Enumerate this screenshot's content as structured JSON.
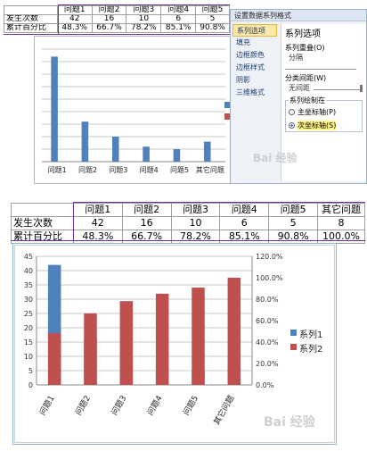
{
  "top_table": {
    "headers": [
      "",
      "问题1",
      "问题2",
      "问题3",
      "问题4",
      "问题5"
    ],
    "rows": [
      {
        "label": "发生次数",
        "values": [
          "42",
          "16",
          "10",
          "6",
          "5"
        ]
      },
      {
        "label": "累计百分比",
        "values": [
          "48.3%",
          "66.7%",
          "78.2%",
          "85.1%",
          "90.8%"
        ]
      }
    ]
  },
  "bottom_table": {
    "headers": [
      "",
      "问题1",
      "问题2",
      "问题3",
      "问题4",
      "问题5",
      "其它问题"
    ],
    "rows": [
      {
        "label": "发生次数",
        "values": [
          "42",
          "16",
          "10",
          "6",
          "5",
          "8"
        ]
      },
      {
        "label": "累计百分比",
        "values": [
          "48.3%",
          "66.7%",
          "78.2%",
          "85.1%",
          "90.8%",
          "100.0%"
        ]
      }
    ]
  },
  "dialog": {
    "title": "设置数据系列格式",
    "nav": [
      "系列选项",
      "填充",
      "边框颜色",
      "边框样式",
      "阴影",
      "三维格式"
    ],
    "panel_title": "系列选项",
    "overlap_label": "系列重叠(O)",
    "overlap_value": "分隔",
    "gap_label": "分类间距(W)",
    "gap_value": "无间距",
    "plot_on_label": "系列绘制在",
    "primary_axis": "主坐标轴(P)",
    "secondary_axis": "次坐标轴(S)"
  },
  "watermark": "Bai 经验",
  "chart_data": [
    {
      "type": "bar",
      "categories": [
        "问题1",
        "问题2",
        "问题3",
        "问题4",
        "问题5",
        "其它问题"
      ],
      "series": [
        {
          "values": [
            42,
            16,
            10,
            6,
            5,
            8
          ],
          "color": "#4f81bd"
        }
      ],
      "ylim": [
        0,
        45
      ],
      "yticks": [
        "0",
        "5",
        "10",
        "15",
        "20",
        "25",
        "30",
        "35",
        "40",
        "45"
      ],
      "grid": true
    },
    {
      "type": "bar",
      "categories": [
        "问题1",
        "问题2",
        "问题3",
        "问题4",
        "问题5",
        "其它问题"
      ],
      "series": [
        {
          "name": "系列1",
          "values": [
            42,
            16,
            10,
            6,
            5,
            8
          ],
          "color": "#4f81bd",
          "axis": "primary"
        },
        {
          "name": "系列2",
          "values": [
            0.483,
            0.667,
            0.782,
            0.851,
            0.908,
            1.0
          ],
          "color": "#c0504d",
          "axis": "secondary"
        }
      ],
      "ylim": [
        0,
        45
      ],
      "y2lim": [
        0,
        1.2
      ],
      "yticks": [
        "0",
        "5",
        "10",
        "15",
        "20",
        "25",
        "30",
        "35",
        "40",
        "45"
      ],
      "y2ticks": [
        "0.0%",
        "20.0%",
        "40.0%",
        "60.0%",
        "80.0%",
        "100.0%",
        "120.0%"
      ],
      "grid": true,
      "legend": "right"
    }
  ]
}
